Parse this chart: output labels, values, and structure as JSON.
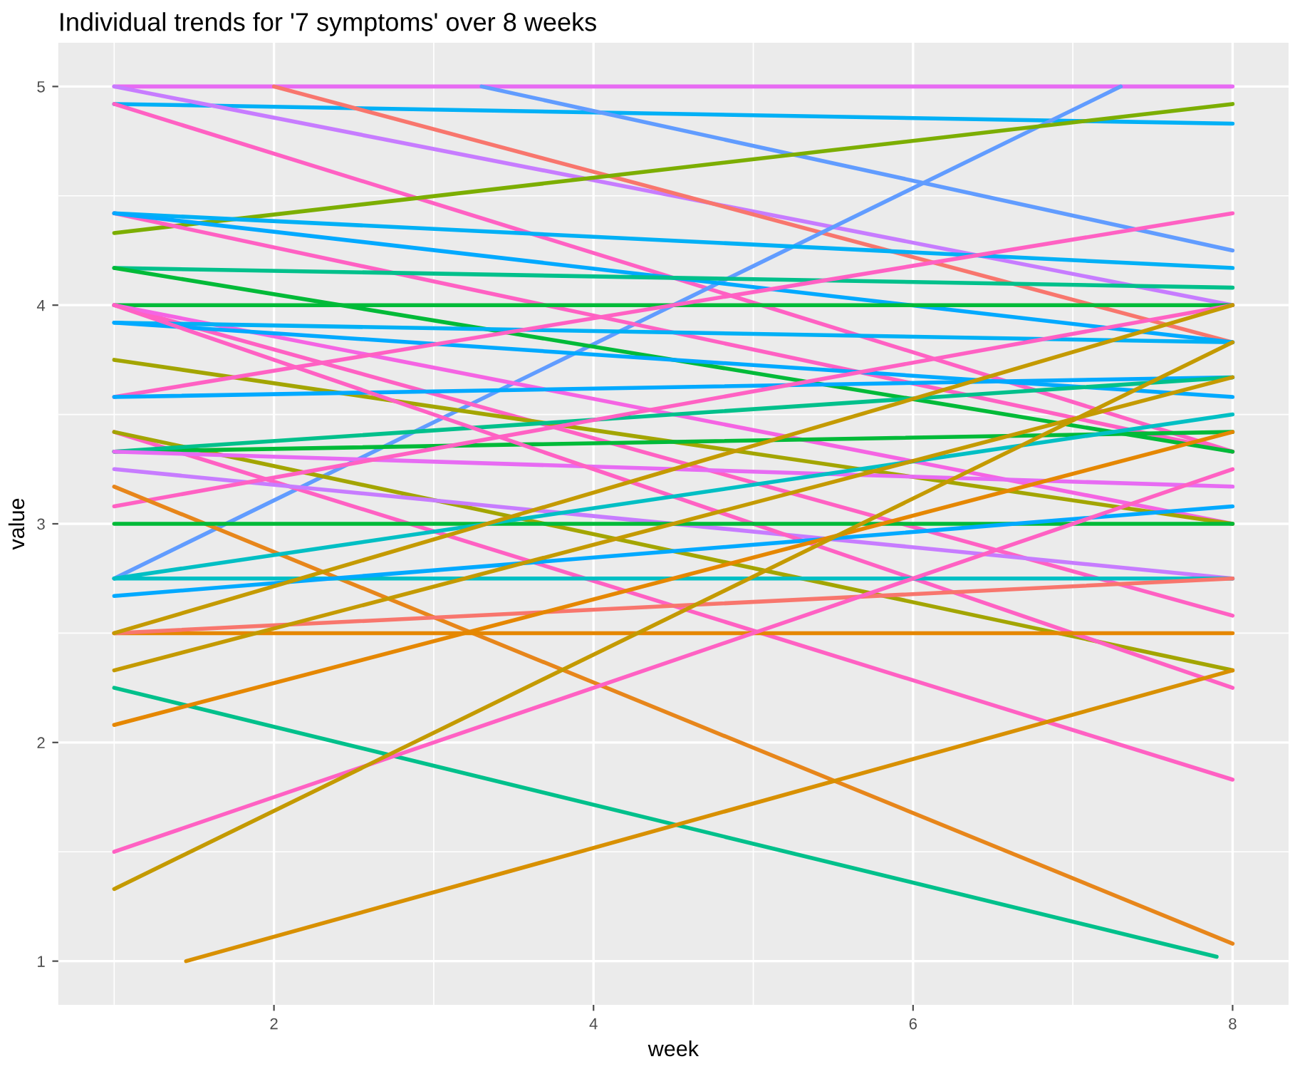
{
  "chart_data": {
    "type": "line",
    "title": "Individual trends for '7 symptoms' over 8 weeks",
    "xlabel": "week",
    "ylabel": "value",
    "xlim": [
      0.65,
      8.35
    ],
    "ylim": [
      0.8,
      5.2
    ],
    "xticks": [
      2,
      4,
      6,
      8
    ],
    "yticks": [
      1,
      2,
      3,
      4,
      5
    ],
    "grid": true,
    "marker": "none",
    "line_style": "solid",
    "series": [
      {
        "color": "#e76bf3",
        "x": [
          1,
          8
        ],
        "values": [
          5,
          5
        ]
      },
      {
        "color": "#00b0f6",
        "x": [
          1,
          8
        ],
        "values": [
          4.92,
          4.83
        ]
      },
      {
        "color": "#ff61c3",
        "x": [
          1,
          8
        ],
        "values": [
          4.92,
          3.33
        ]
      },
      {
        "color": "#c77cff",
        "x": [
          1,
          8
        ],
        "values": [
          5,
          4.0
        ]
      },
      {
        "color": "#f8766d",
        "x": [
          2,
          8
        ],
        "values": [
          5,
          3.83
        ]
      },
      {
        "color": "#619cff",
        "x": [
          3.3,
          8
        ],
        "values": [
          5,
          4.25
        ]
      },
      {
        "color": "#619cff",
        "x": [
          1,
          7.3
        ],
        "values": [
          2.75,
          5
        ]
      },
      {
        "color": "#7cae00",
        "x": [
          1,
          8
        ],
        "values": [
          4.33,
          4.92
        ]
      },
      {
        "color": "#00b0f6",
        "x": [
          1,
          8
        ],
        "values": [
          4.42,
          4.17
        ]
      },
      {
        "color": "#ff61c3",
        "x": [
          1,
          8
        ],
        "values": [
          4.42,
          3.33
        ]
      },
      {
        "color": "#00a9ff",
        "x": [
          1,
          8
        ],
        "values": [
          4.42,
          3.83
        ]
      },
      {
        "color": "#00c08b",
        "x": [
          1,
          8
        ],
        "values": [
          4.17,
          4.08
        ]
      },
      {
        "color": "#00ba38",
        "x": [
          1,
          8
        ],
        "values": [
          4.17,
          3.33
        ]
      },
      {
        "color": "#00ba38",
        "x": [
          1,
          8
        ],
        "values": [
          4.0,
          4.0
        ]
      },
      {
        "color": "#ff61c3",
        "x": [
          1,
          8
        ],
        "values": [
          4.0,
          2.58
        ]
      },
      {
        "color": "#f564e3",
        "x": [
          1,
          8
        ],
        "values": [
          4.0,
          3.0
        ]
      },
      {
        "color": "#00b0f6",
        "x": [
          1,
          8
        ],
        "values": [
          3.92,
          3.83
        ]
      },
      {
        "color": "#00a9ff",
        "x": [
          1,
          8
        ],
        "values": [
          3.92,
          3.58
        ]
      },
      {
        "color": "#a3a500",
        "x": [
          1,
          8
        ],
        "values": [
          3.75,
          3.0
        ]
      },
      {
        "color": "#ff61c3",
        "x": [
          1,
          8
        ],
        "values": [
          3.58,
          4.42
        ]
      },
      {
        "color": "#00a9ff",
        "x": [
          1,
          8
        ],
        "values": [
          3.58,
          3.67
        ]
      },
      {
        "color": "#ff61c3",
        "x": [
          1,
          8
        ],
        "values": [
          3.42,
          1.83
        ]
      },
      {
        "color": "#a3a500",
        "x": [
          1,
          8
        ],
        "values": [
          3.42,
          2.33
        ]
      },
      {
        "color": "#00ba38",
        "x": [
          1,
          8
        ],
        "values": [
          3.33,
          3.42
        ]
      },
      {
        "color": "#00c08b",
        "x": [
          1,
          8
        ],
        "values": [
          3.33,
          3.67
        ]
      },
      {
        "color": "#e76bf3",
        "x": [
          1,
          8
        ],
        "values": [
          3.33,
          3.17
        ]
      },
      {
        "color": "#c77cff",
        "x": [
          1,
          8
        ],
        "values": [
          3.25,
          2.75
        ]
      },
      {
        "color": "#ff61c3",
        "x": [
          1,
          8
        ],
        "values": [
          3.08,
          4.0
        ]
      },
      {
        "color": "#ff61c3",
        "x": [
          1,
          8
        ],
        "values": [
          4.0,
          2.25
        ]
      },
      {
        "color": "#e7861b",
        "x": [
          1,
          8
        ],
        "values": [
          3.17,
          1.08
        ]
      },
      {
        "color": "#00ba38",
        "x": [
          1,
          8
        ],
        "values": [
          3.0,
          3.0
        ]
      },
      {
        "color": "#00bfc4",
        "x": [
          1,
          8
        ],
        "values": [
          2.75,
          3.5
        ]
      },
      {
        "color": "#00bfc4",
        "x": [
          1,
          8
        ],
        "values": [
          2.75,
          2.75
        ]
      },
      {
        "color": "#00a9ff",
        "x": [
          1,
          8
        ],
        "values": [
          2.67,
          3.08
        ]
      },
      {
        "color": "#e58700",
        "x": [
          1,
          8
        ],
        "values": [
          2.5,
          2.5
        ]
      },
      {
        "color": "#f8766d",
        "x": [
          1,
          8
        ],
        "values": [
          2.5,
          2.75
        ]
      },
      {
        "color": "#c49a00",
        "x": [
          1,
          8
        ],
        "values": [
          2.5,
          4.0
        ]
      },
      {
        "color": "#c49a00",
        "x": [
          1,
          8
        ],
        "values": [
          2.33,
          3.67
        ]
      },
      {
        "color": "#00c08b",
        "x": [
          1,
          7.9
        ],
        "values": [
          2.25,
          1.02
        ]
      },
      {
        "color": "#e58700",
        "x": [
          1,
          8
        ],
        "values": [
          2.08,
          3.42
        ]
      },
      {
        "color": "#ff61c3",
        "x": [
          1,
          8
        ],
        "values": [
          1.5,
          3.25
        ]
      },
      {
        "color": "#c49a00",
        "x": [
          1,
          8
        ],
        "values": [
          1.33,
          3.83
        ]
      },
      {
        "color": "#d89000",
        "x": [
          1.45,
          8
        ],
        "values": [
          1.0,
          2.33
        ]
      }
    ]
  }
}
